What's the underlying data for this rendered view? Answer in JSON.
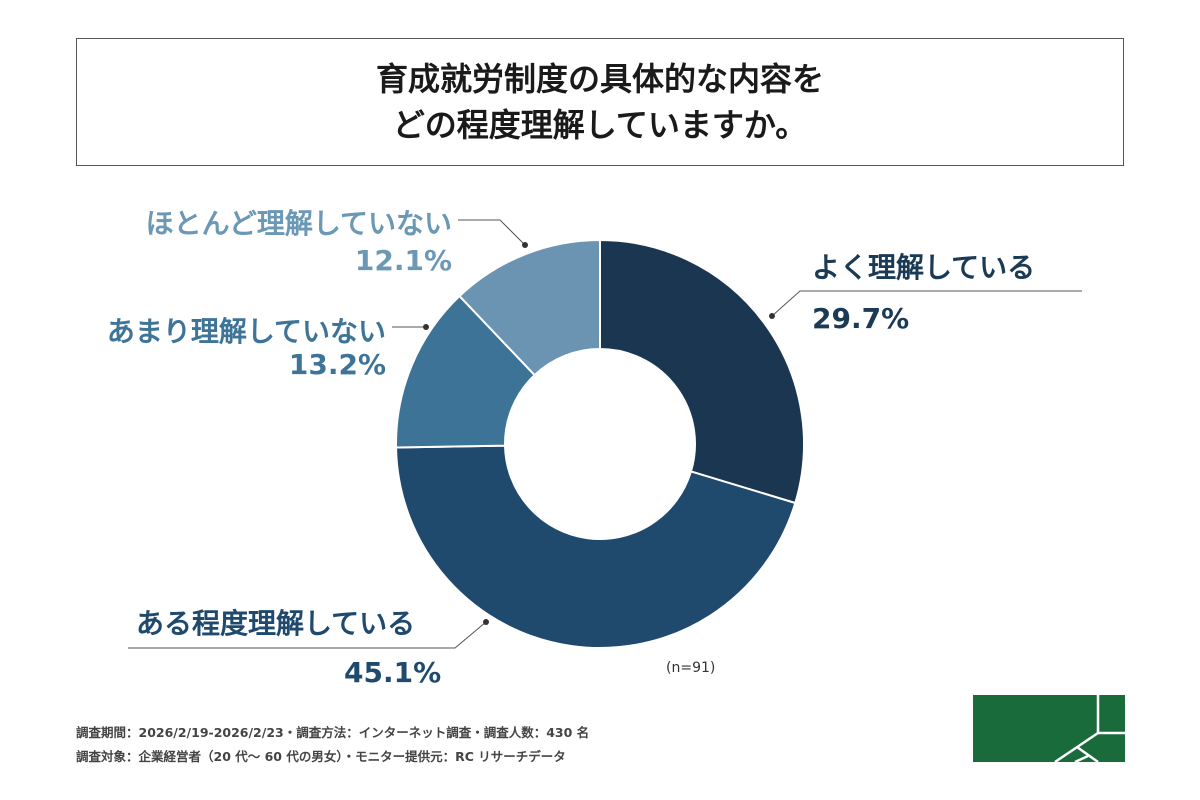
{
  "title": [
    "育成就労制度の具体的な内容を",
    "どの程度理解していますか。"
  ],
  "chart_data": {
    "type": "pie",
    "donut": true,
    "start": "top, clockwise",
    "categories": [
      "よく理解している",
      "ある程度理解している",
      "あまり理解していない",
      "ほとんど理解していない"
    ],
    "values": [
      29.7,
      45.1,
      13.2,
      12.1
    ],
    "labels": [
      "29.7%",
      "45.1%",
      "13.2%",
      "12.1%"
    ],
    "colors": [
      "#1b3650",
      "#1f4a6e",
      "#3e7398",
      "#6b94b2"
    ],
    "label_colors": [
      "#1b3a55",
      "#1f4a6e",
      "#3f7499",
      "#6b98b5"
    ],
    "note": "(n=91)"
  },
  "footer": [
    "調査期間：2026/2/19-2026/2/23・調査方法：インターネット調査・調査人数：430 名",
    "調査対象：企業経営者（20 代～ 60 代の男女）・モニター提供元：RC リサーチデータ"
  ],
  "logo_color": "#1a6b3c"
}
